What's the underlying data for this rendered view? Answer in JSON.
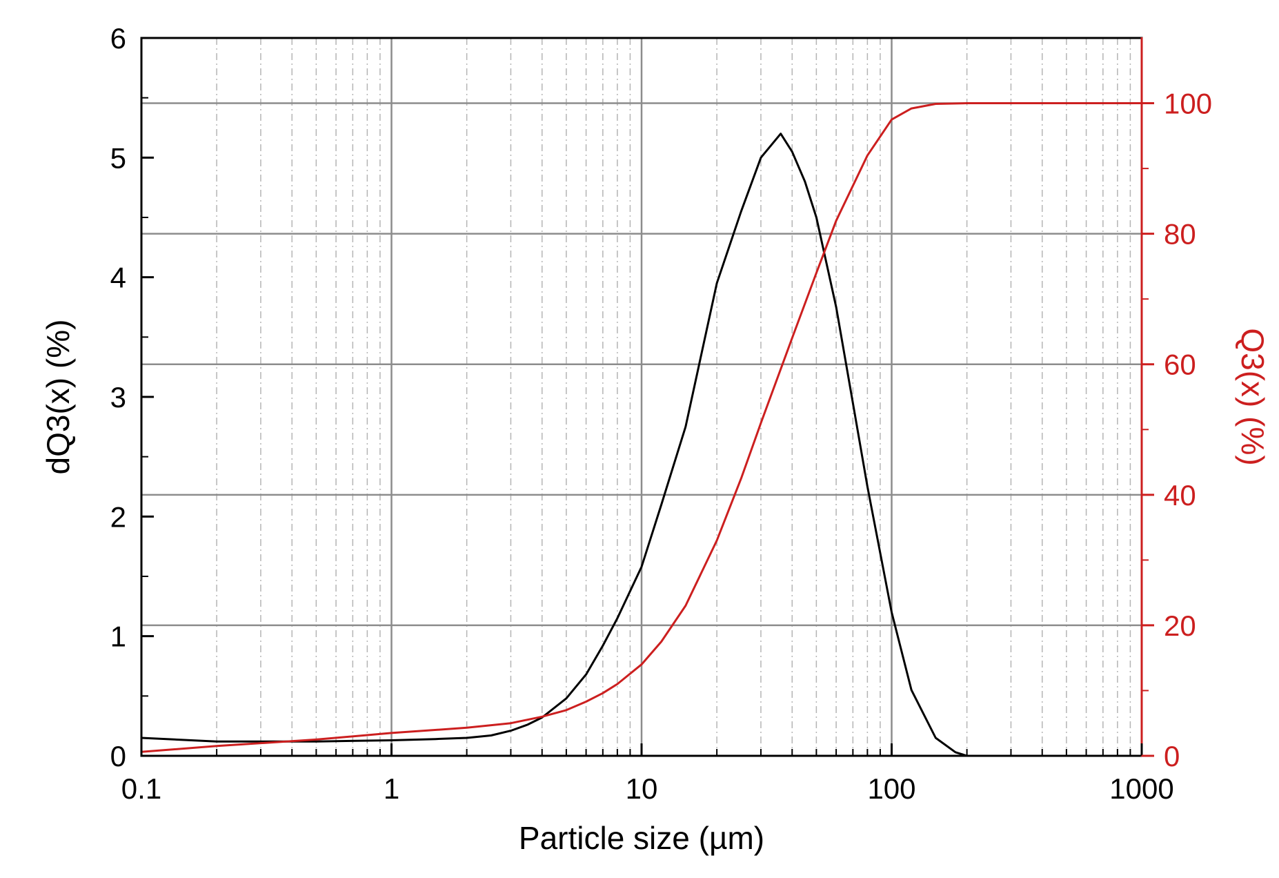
{
  "chart_data": {
    "type": "line",
    "xlabel": "Particle size (µm)",
    "ylabel_left": "dQ3(x) (%)",
    "ylabel_right": "Q3(x) (%)",
    "x_scale": "log",
    "xlim": [
      0.1,
      1000
    ],
    "ylim_left": [
      0,
      6
    ],
    "ylim_right": [
      0,
      110
    ],
    "x_ticks": [
      {
        "value": 0.1,
        "label": "0.1"
      },
      {
        "value": 1,
        "label": "1"
      },
      {
        "value": 10,
        "label": "10"
      },
      {
        "value": 100,
        "label": "100"
      },
      {
        "value": 1000,
        "label": "1000"
      }
    ],
    "y_left_ticks": [
      {
        "value": 0,
        "label": "0"
      },
      {
        "value": 1,
        "label": "1"
      },
      {
        "value": 2,
        "label": "2"
      },
      {
        "value": 3,
        "label": "3"
      },
      {
        "value": 4,
        "label": "4"
      },
      {
        "value": 5,
        "label": "5"
      },
      {
        "value": 6,
        "label": "6"
      }
    ],
    "y_right_ticks": [
      {
        "value": 0,
        "label": "0"
      },
      {
        "value": 20,
        "label": "20"
      },
      {
        "value": 40,
        "label": "40"
      },
      {
        "value": 60,
        "label": "60"
      },
      {
        "value": 80,
        "label": "80"
      },
      {
        "value": 100,
        "label": "100"
      }
    ],
    "grid": true,
    "colors": {
      "density": "#000000",
      "cumulative": "#cc1f1f",
      "grid_major": "#8c8c8c",
      "grid_minor": "#b4b4b4"
    },
    "series": [
      {
        "axis": "left",
        "color": "#000000",
        "x": [
          0.1,
          0.2,
          0.5,
          1,
          1.5,
          2,
          2.5,
          3,
          3.5,
          4,
          5,
          6,
          7,
          8,
          10,
          12,
          15,
          20,
          25,
          30,
          36,
          40,
          45,
          50,
          60,
          70,
          80,
          100,
          120,
          150,
          180,
          200,
          300,
          500,
          1000
        ],
        "y": [
          0.15,
          0.12,
          0.12,
          0.13,
          0.14,
          0.15,
          0.17,
          0.21,
          0.26,
          0.32,
          0.48,
          0.68,
          0.92,
          1.15,
          1.58,
          2.1,
          2.75,
          3.95,
          4.55,
          5.0,
          5.2,
          5.05,
          4.8,
          4.5,
          3.75,
          2.95,
          2.25,
          1.2,
          0.55,
          0.15,
          0.03,
          0.0,
          0.0,
          0.0,
          0.0
        ]
      },
      {
        "axis": "right",
        "color": "#cc1f1f",
        "x": [
          0.1,
          0.2,
          0.5,
          1,
          2,
          3,
          4,
          5,
          6,
          7,
          8,
          10,
          12,
          15,
          20,
          25,
          30,
          40,
          50,
          60,
          80,
          100,
          120,
          150,
          200,
          500,
          1000
        ],
        "y": [
          0.6,
          1.5,
          2.5,
          3.5,
          4.3,
          5.0,
          6.0,
          7.0,
          8.3,
          9.6,
          11.0,
          14.0,
          17.5,
          23.0,
          33.0,
          42.5,
          51.0,
          64.0,
          74.0,
          82.0,
          92.0,
          97.5,
          99.2,
          99.9,
          100,
          100,
          100
        ]
      }
    ]
  }
}
